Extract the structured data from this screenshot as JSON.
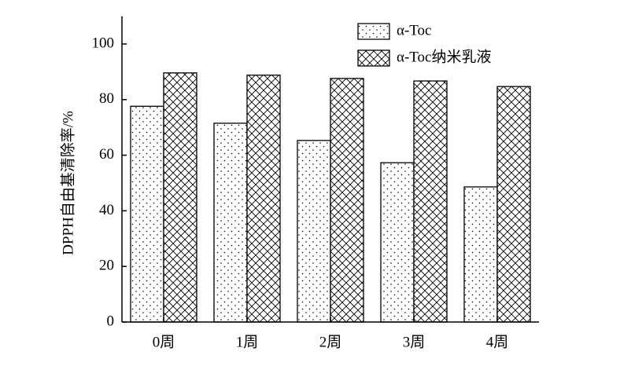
{
  "chart_data": {
    "type": "bar",
    "y_label": "DPPH自由基清除率/%",
    "categories": [
      "0周",
      "1周",
      "2周",
      "3周",
      "4周"
    ],
    "series": [
      {
        "name": "α-Toc",
        "color": "#000000",
        "pattern": "dots",
        "values": [
          77.6,
          71.5,
          65.3,
          57.3,
          48.6
        ]
      },
      {
        "name": "α-Toc纳米乳液",
        "color": "#000000",
        "pattern": "crosshatch",
        "values": [
          89.6,
          88.8,
          87.6,
          86.7,
          84.7
        ]
      }
    ],
    "ylim": [
      0,
      110
    ],
    "yticks": [
      0,
      20,
      40,
      60,
      80,
      100
    ],
    "grid": false
  }
}
